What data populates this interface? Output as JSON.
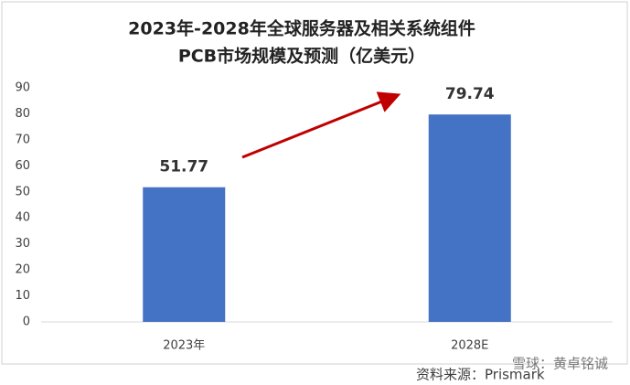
{
  "chart_data": {
    "type": "bar",
    "title": [
      "2023年-2028年全球服务器及相关系统组件",
      "PCB市场规模及预测（亿美元）"
    ],
    "categories": [
      "2023年",
      "2028E"
    ],
    "values": [
      51.77,
      79.74
    ],
    "color": "#4472c4",
    "ylim": [
      0,
      90
    ],
    "yticks": [
      0,
      10,
      20,
      30,
      40,
      50,
      60,
      70,
      80,
      90
    ],
    "grid": false,
    "source": "资料来源：Prismark",
    "watermark": "雪球：黄卓铭诚"
  }
}
